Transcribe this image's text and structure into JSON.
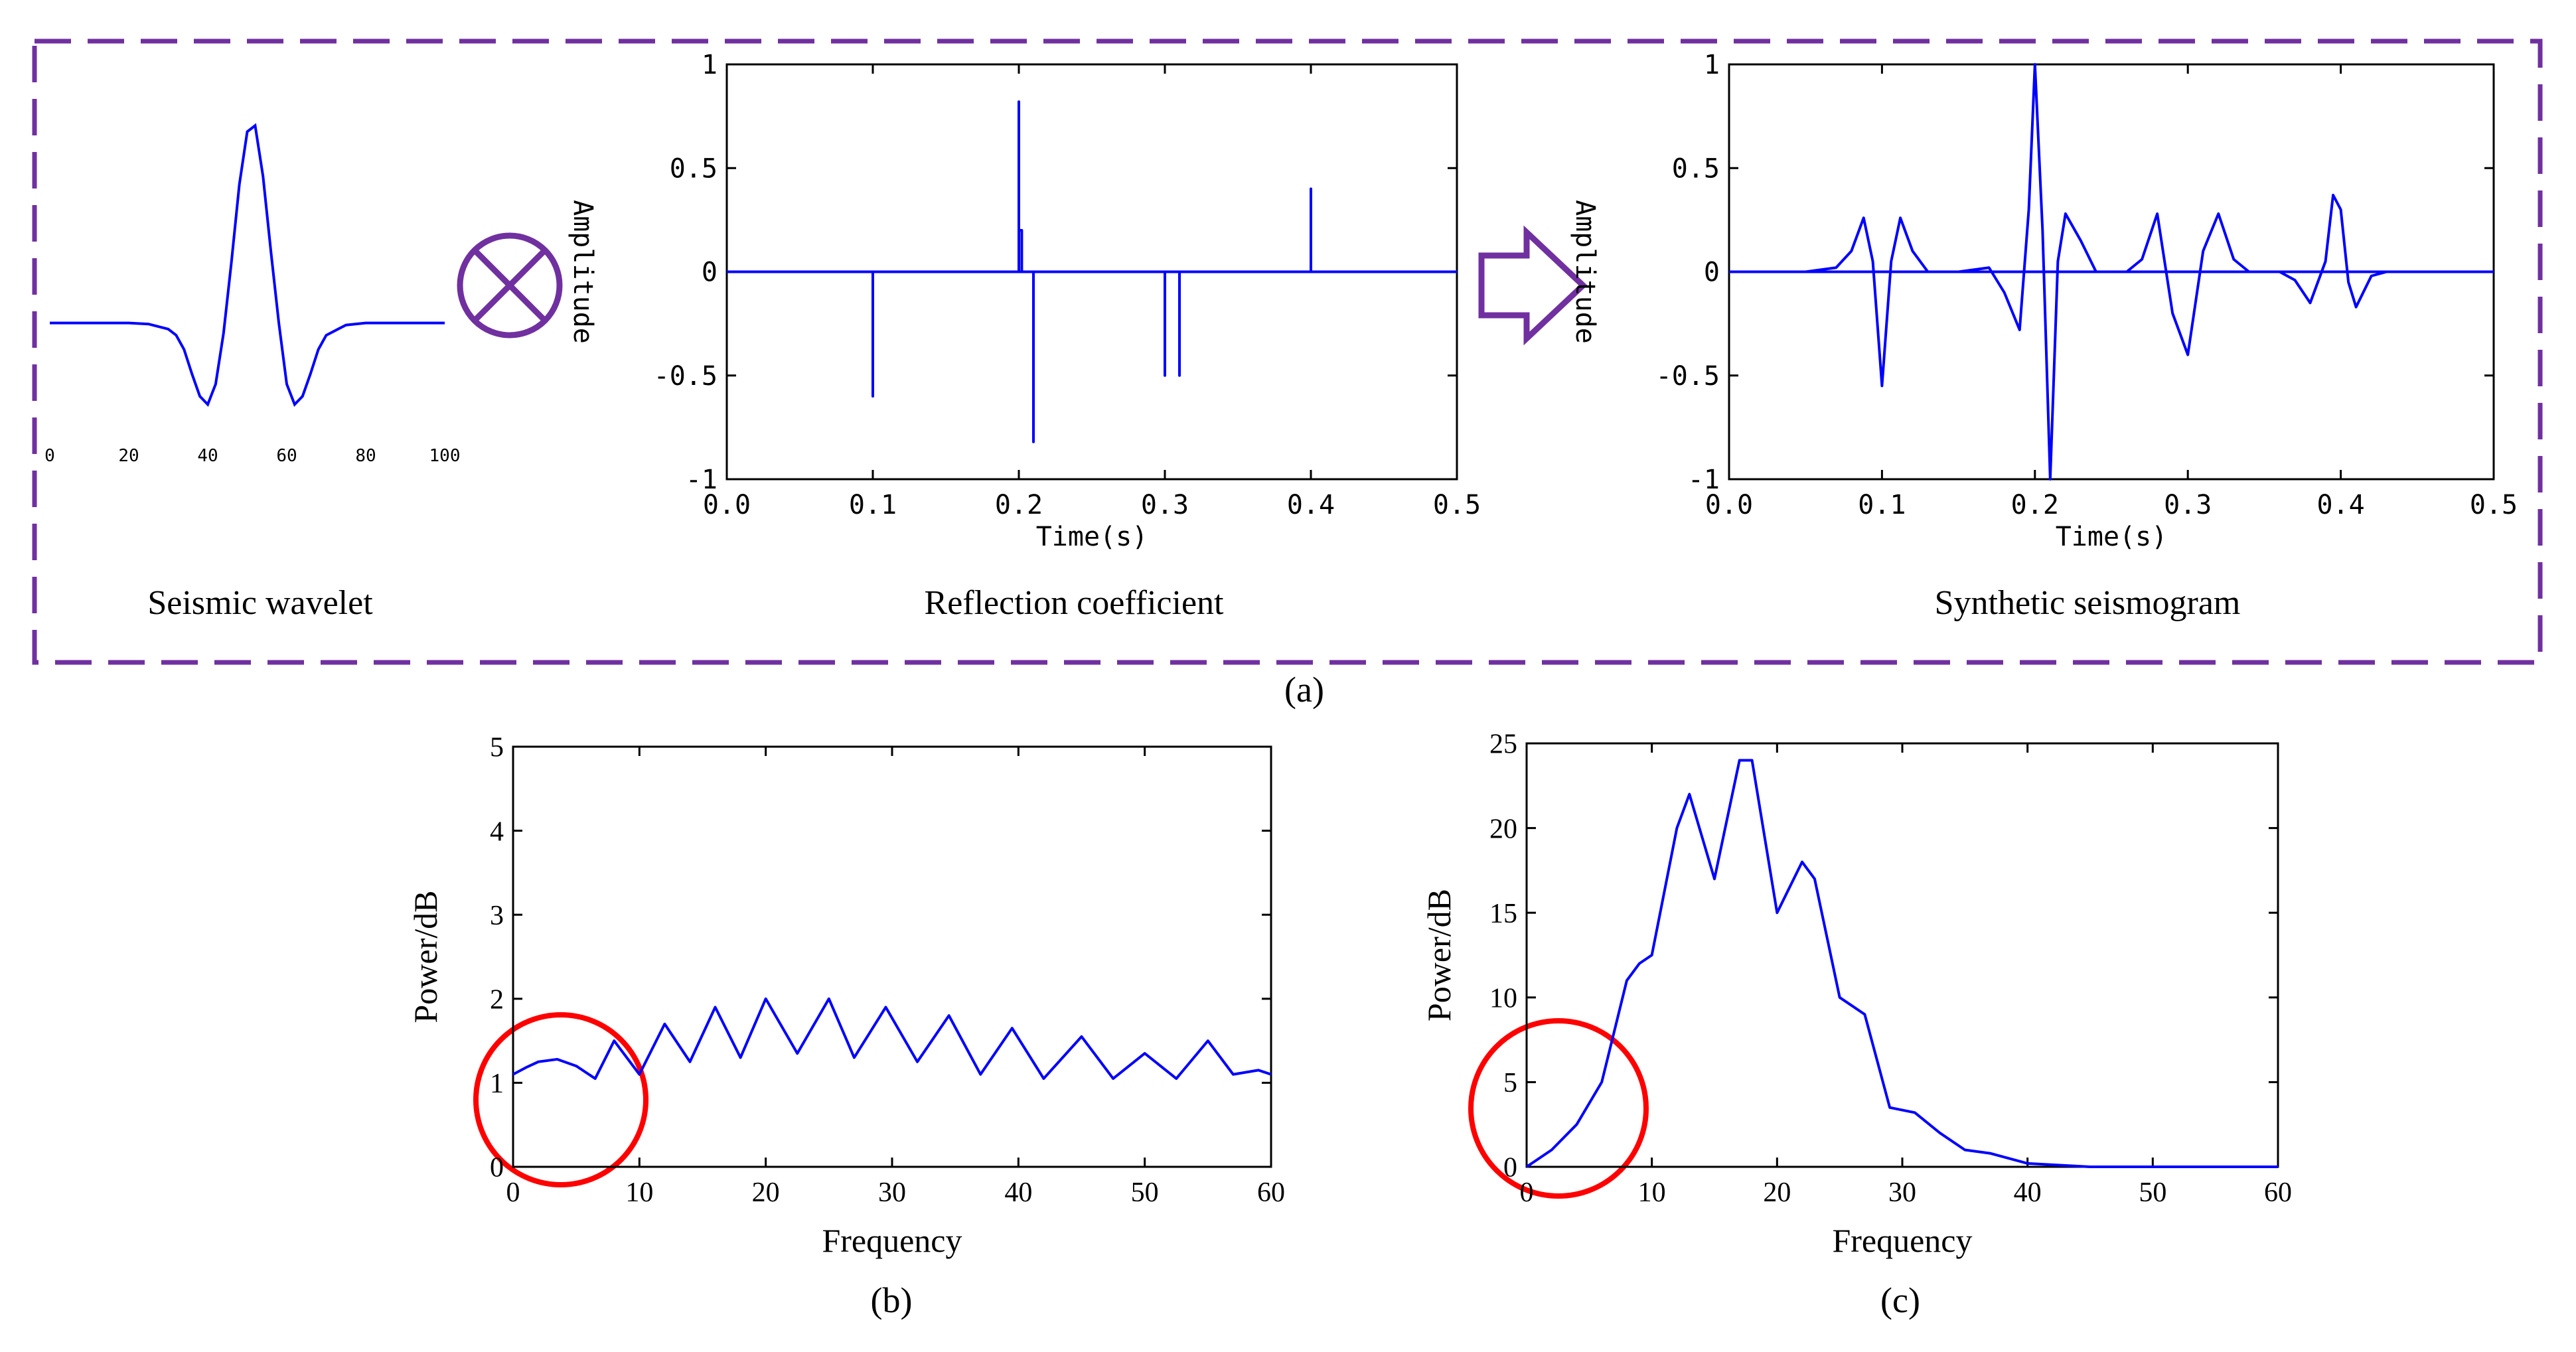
{
  "colors": {
    "line": "#0000ff",
    "frame": "#7030a0",
    "circle": "#ff0000",
    "axis": "#000000"
  },
  "panel_a": {
    "label": "(a)",
    "operator_icon": "circled-times-icon",
    "arrow_icon": "hollow-right-arrow-icon"
  },
  "chart_data": [
    {
      "id": "wavelet",
      "type": "line",
      "title": "Seismic wavelet",
      "xlabel": "",
      "ylabel": "",
      "xlim": [
        0,
        100
      ],
      "ylim": [
        -0.5,
        1.0
      ],
      "tick_labels": [
        "0",
        "20",
        "40",
        "60",
        "80",
        "100"
      ],
      "x": [
        0,
        10,
        20,
        25,
        30,
        32,
        34,
        36,
        38,
        40,
        42,
        44,
        46,
        48,
        50,
        52,
        54,
        56,
        58,
        60,
        62,
        64,
        66,
        68,
        70,
        75,
        80,
        90,
        100
      ],
      "y": [
        0,
        0,
        0,
        -0.005,
        -0.03,
        -0.06,
        -0.13,
        -0.25,
        -0.36,
        -0.4,
        -0.3,
        -0.05,
        0.3,
        0.68,
        0.94,
        0.97,
        0.72,
        0.35,
        0.0,
        -0.3,
        -0.4,
        -0.36,
        -0.25,
        -0.13,
        -0.06,
        -0.01,
        0,
        0,
        0
      ]
    },
    {
      "id": "reflectivity",
      "type": "line",
      "title": "Reflection coefficient",
      "xlabel": "Time(s)",
      "ylabel": "Amplitude",
      "xlim": [
        0.0,
        0.5
      ],
      "ylim": [
        -1,
        1
      ],
      "x_ticks": [
        "0.0",
        "0.1",
        "0.2",
        "0.3",
        "0.4",
        "0.5"
      ],
      "y_ticks": [
        "-1",
        "-0.5",
        "0",
        "0.5",
        "1"
      ],
      "x": [
        0,
        0.1,
        0.1,
        0.1,
        0.2,
        0.2,
        0.2,
        0.202,
        0.202,
        0.21,
        0.21,
        0.21,
        0.3,
        0.3,
        0.3,
        0.31,
        0.31,
        0.31,
        0.4,
        0.4,
        0.4,
        0.5
      ],
      "y": [
        0,
        0,
        -0.6,
        0,
        0,
        0.82,
        0.2,
        0.2,
        0,
        0,
        -0.82,
        0,
        0,
        -0.5,
        0,
        0,
        -0.5,
        0,
        0,
        0.4,
        0,
        0
      ]
    },
    {
      "id": "synthetic",
      "type": "line",
      "title": "Synthetic seismogram",
      "xlabel": "Time(s)",
      "ylabel": "Amplitude",
      "xlim": [
        0.0,
        0.5
      ],
      "ylim": [
        -1,
        1
      ],
      "x_ticks": [
        "0.0",
        "0.1",
        "0.2",
        "0.3",
        "0.4",
        "0.5"
      ],
      "y_ticks": [
        "-1",
        "-0.5",
        "0",
        "0.5",
        "1"
      ],
      "x": [
        0,
        0.05,
        0.07,
        0.08,
        0.088,
        0.094,
        0.1,
        0.106,
        0.112,
        0.12,
        0.13,
        0.15,
        0.17,
        0.18,
        0.19,
        0.196,
        0.2,
        0.205,
        0.21,
        0.215,
        0.22,
        0.23,
        0.24,
        0.26,
        0.27,
        0.28,
        0.29,
        0.3,
        0.31,
        0.32,
        0.33,
        0.34,
        0.36,
        0.37,
        0.38,
        0.39,
        0.395,
        0.4,
        0.405,
        0.41,
        0.42,
        0.43,
        0.45,
        0.5
      ],
      "y": [
        0,
        0,
        0.02,
        0.1,
        0.26,
        0.05,
        -0.55,
        0.05,
        0.26,
        0.1,
        0.0,
        0.0,
        0.02,
        -0.1,
        -0.28,
        0.3,
        1.0,
        0.2,
        -1.0,
        0.05,
        0.28,
        0.15,
        0.0,
        0.0,
        0.06,
        0.28,
        -0.2,
        -0.4,
        0.1,
        0.28,
        0.06,
        0.0,
        0.0,
        -0.04,
        -0.15,
        0.05,
        0.37,
        0.3,
        -0.05,
        -0.17,
        -0.02,
        0.0,
        0,
        0
      ]
    },
    {
      "id": "spectrum_b",
      "label": "(b)",
      "type": "line",
      "xlabel": "Frequency",
      "ylabel": "Power/dB",
      "xlim": [
        0,
        60
      ],
      "ylim": [
        0,
        5
      ],
      "x_ticks": [
        "0",
        "10",
        "20",
        "30",
        "40",
        "50",
        "60"
      ],
      "y_ticks": [
        "0",
        "1",
        "2",
        "3",
        "4",
        "5"
      ],
      "x": [
        0,
        1,
        2,
        3.5,
        5,
        6.5,
        8,
        10,
        12,
        14,
        16,
        18,
        20,
        22.5,
        25,
        27,
        29.5,
        32,
        34.5,
        37,
        39.5,
        42,
        45,
        47.5,
        50,
        52.5,
        55,
        57,
        59,
        60
      ],
      "y": [
        1.1,
        1.18,
        1.25,
        1.28,
        1.2,
        1.05,
        1.5,
        1.1,
        1.7,
        1.25,
        1.9,
        1.3,
        2.0,
        1.35,
        2.0,
        1.3,
        1.9,
        1.25,
        1.8,
        1.1,
        1.65,
        1.05,
        1.55,
        1.05,
        1.35,
        1.05,
        1.5,
        1.1,
        1.15,
        1.1
      ]
    },
    {
      "id": "spectrum_c",
      "label": "(c)",
      "type": "line",
      "xlabel": "Frequency",
      "ylabel": "Power/dB",
      "xlim": [
        0,
        60
      ],
      "ylim": [
        0,
        25
      ],
      "x_ticks": [
        "0",
        "10",
        "20",
        "30",
        "40",
        "50",
        "60"
      ],
      "y_ticks": [
        "0",
        "5",
        "10",
        "15",
        "20",
        "25"
      ],
      "x": [
        0,
        2,
        4,
        6,
        8,
        9,
        10,
        12,
        13,
        15,
        17,
        18,
        20,
        22,
        23,
        25,
        27,
        29,
        31,
        33,
        35,
        37,
        40,
        45,
        50,
        55,
        60
      ],
      "y": [
        0,
        1,
        2.5,
        5,
        11,
        12,
        12.5,
        20,
        22,
        17,
        24,
        24,
        15,
        18,
        17,
        10,
        9,
        3.5,
        3.2,
        2,
        1,
        0.8,
        0.2,
        0,
        0,
        0,
        0
      ]
    }
  ]
}
